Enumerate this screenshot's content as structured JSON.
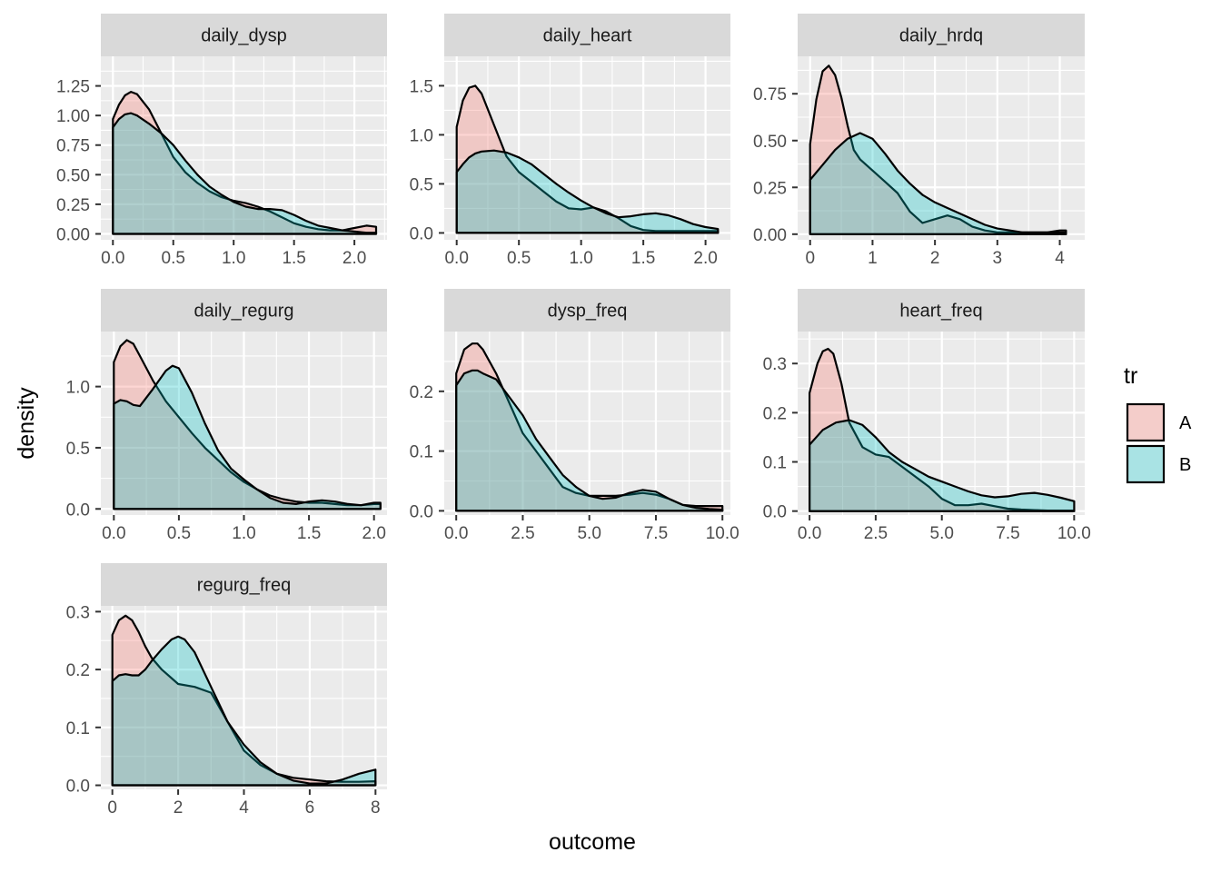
{
  "chart_data": {
    "type": "area",
    "xlabel": "outcome",
    "ylabel": "density",
    "legend": {
      "title": "tr",
      "position": "right",
      "entries": [
        {
          "name": "A",
          "color": "#F8766D"
        },
        {
          "name": "B",
          "color": "#00BFC4"
        }
      ]
    },
    "fill_alpha": 0.3,
    "grid": true,
    "panels": [
      {
        "title": "daily_dysp",
        "xlim": [
          -0.1,
          2.27
        ],
        "ylim": [
          -0.05,
          1.5
        ],
        "xticks": [
          0,
          0.5,
          1,
          1.5,
          2
        ],
        "xtick_labels": [
          "0.0",
          "0.5",
          "1.0",
          "1.5",
          "2.0"
        ],
        "yticks": [
          0,
          0.25,
          0.5,
          0.75,
          1,
          1.25
        ],
        "ytick_labels": [
          "0.00",
          "0.25",
          "0.50",
          "0.75",
          "1.00",
          "1.25"
        ],
        "series": [
          {
            "name": "A",
            "x": [
              0,
              0.05,
              0.1,
              0.15,
              0.2,
              0.3,
              0.4,
              0.5,
              0.6,
              0.7,
              0.8,
              0.9,
              1.0,
              1.1,
              1.2,
              1.3,
              1.4,
              1.5,
              1.6,
              1.7,
              1.8,
              1.9,
              2.0,
              2.1,
              2.18
            ],
            "y": [
              0.97,
              1.09,
              1.17,
              1.2,
              1.18,
              1.05,
              0.85,
              0.65,
              0.52,
              0.43,
              0.36,
              0.31,
              0.28,
              0.26,
              0.23,
              0.19,
              0.14,
              0.09,
              0.06,
              0.04,
              0.03,
              0.03,
              0.05,
              0.07,
              0.06
            ]
          },
          {
            "name": "B",
            "x": [
              0,
              0.05,
              0.1,
              0.15,
              0.2,
              0.3,
              0.4,
              0.5,
              0.6,
              0.7,
              0.8,
              0.9,
              1.0,
              1.1,
              1.2,
              1.3,
              1.4,
              1.5,
              1.6,
              1.7,
              1.8,
              1.9,
              2.0,
              2.1,
              2.18
            ],
            "y": [
              0.9,
              0.97,
              1.01,
              1.02,
              1.0,
              0.93,
              0.85,
              0.75,
              0.62,
              0.5,
              0.4,
              0.33,
              0.27,
              0.23,
              0.21,
              0.21,
              0.2,
              0.16,
              0.11,
              0.07,
              0.05,
              0.03,
              0.02,
              0.01,
              0.01
            ]
          }
        ]
      },
      {
        "title": "daily_heart",
        "xlim": [
          -0.1,
          2.2
        ],
        "ylim": [
          -0.07,
          1.8
        ],
        "xticks": [
          0,
          0.5,
          1,
          1.5,
          2
        ],
        "xtick_labels": [
          "0.0",
          "0.5",
          "1.0",
          "1.5",
          "2.0"
        ],
        "yticks": [
          0,
          0.5,
          1,
          1.5
        ],
        "ytick_labels": [
          "0.0",
          "0.5",
          "1.0",
          "1.5"
        ],
        "series": [
          {
            "name": "A",
            "x": [
              0,
              0.05,
              0.1,
              0.15,
              0.2,
              0.3,
              0.4,
              0.5,
              0.6,
              0.7,
              0.8,
              0.9,
              1.0,
              1.1,
              1.2,
              1.3,
              1.4,
              1.5,
              1.6,
              1.7,
              1.8,
              1.9,
              2.0,
              2.1
            ],
            "y": [
              1.08,
              1.35,
              1.48,
              1.5,
              1.42,
              1.1,
              0.78,
              0.62,
              0.52,
              0.42,
              0.32,
              0.25,
              0.24,
              0.26,
              0.22,
              0.15,
              0.07,
              0.03,
              0.02,
              0.02,
              0.02,
              0.02,
              0.02,
              0.02
            ]
          },
          {
            "name": "B",
            "x": [
              0,
              0.05,
              0.1,
              0.15,
              0.2,
              0.3,
              0.4,
              0.5,
              0.6,
              0.7,
              0.8,
              0.9,
              1.0,
              1.1,
              1.2,
              1.3,
              1.4,
              1.5,
              1.6,
              1.7,
              1.8,
              1.9,
              2.0,
              2.1
            ],
            "y": [
              0.62,
              0.7,
              0.77,
              0.81,
              0.83,
              0.84,
              0.82,
              0.77,
              0.7,
              0.6,
              0.5,
              0.41,
              0.33,
              0.26,
              0.2,
              0.16,
              0.17,
              0.19,
              0.2,
              0.18,
              0.14,
              0.09,
              0.06,
              0.04
            ]
          }
        ]
      },
      {
        "title": "daily_hrdq",
        "xlim": [
          -0.2,
          4.4
        ],
        "ylim": [
          -0.03,
          0.95
        ],
        "xticks": [
          0,
          1,
          2,
          3,
          4
        ],
        "xtick_labels": [
          "0",
          "1",
          "2",
          "3",
          "4"
        ],
        "yticks": [
          0,
          0.25,
          0.5,
          0.75
        ],
        "ytick_labels": [
          "0.00",
          "0.25",
          "0.50",
          "0.75"
        ],
        "series": [
          {
            "name": "A",
            "x": [
              0,
              0.1,
              0.2,
              0.3,
              0.4,
              0.5,
              0.6,
              0.7,
              0.8,
              1.0,
              1.2,
              1.4,
              1.6,
              1.8,
              2.0,
              2.2,
              2.4,
              2.6,
              2.8,
              3.0,
              3.2,
              3.4,
              3.6,
              3.8,
              4.0,
              4.1
            ],
            "y": [
              0.48,
              0.72,
              0.87,
              0.9,
              0.85,
              0.73,
              0.58,
              0.45,
              0.4,
              0.34,
              0.28,
              0.22,
              0.12,
              0.06,
              0.08,
              0.1,
              0.08,
              0.04,
              0.02,
              0.01,
              0.01,
              0.01,
              0.01,
              0.01,
              0.02,
              0.02
            ]
          },
          {
            "name": "B",
            "x": [
              0,
              0.2,
              0.4,
              0.6,
              0.8,
              1.0,
              1.2,
              1.4,
              1.6,
              1.8,
              2.0,
              2.2,
              2.4,
              2.6,
              2.8,
              3.0,
              3.2,
              3.4,
              3.6,
              3.8,
              4.0,
              4.1
            ],
            "y": [
              0.29,
              0.37,
              0.45,
              0.51,
              0.54,
              0.51,
              0.43,
              0.34,
              0.27,
              0.21,
              0.17,
              0.14,
              0.11,
              0.08,
              0.05,
              0.03,
              0.02,
              0.01,
              0.01,
              0.01,
              0.01,
              0.01
            ]
          }
        ]
      },
      {
        "title": "daily_regurg",
        "xlim": [
          -0.1,
          2.1
        ],
        "ylim": [
          -0.05,
          1.45
        ],
        "xticks": [
          0,
          0.5,
          1,
          1.5,
          2
        ],
        "xtick_labels": [
          "0.0",
          "0.5",
          "1.0",
          "1.5",
          "2.0"
        ],
        "yticks": [
          0,
          0.5,
          1
        ],
        "ytick_labels": [
          "0.0",
          "0.5",
          "1.0"
        ],
        "series": [
          {
            "name": "A",
            "x": [
              0,
              0.05,
              0.1,
              0.15,
              0.2,
              0.3,
              0.4,
              0.5,
              0.6,
              0.7,
              0.8,
              0.9,
              1.0,
              1.1,
              1.2,
              1.3,
              1.4,
              1.5,
              1.6,
              1.7,
              1.8,
              1.9,
              2.0,
              2.05
            ],
            "y": [
              1.2,
              1.33,
              1.38,
              1.35,
              1.25,
              1.05,
              0.88,
              0.75,
              0.62,
              0.5,
              0.4,
              0.3,
              0.22,
              0.16,
              0.11,
              0.08,
              0.06,
              0.05,
              0.05,
              0.04,
              0.03,
              0.03,
              0.04,
              0.04
            ]
          },
          {
            "name": "B",
            "x": [
              0,
              0.05,
              0.1,
              0.15,
              0.2,
              0.3,
              0.4,
              0.45,
              0.5,
              0.6,
              0.7,
              0.8,
              0.9,
              1.0,
              1.1,
              1.2,
              1.3,
              1.4,
              1.5,
              1.6,
              1.7,
              1.8,
              1.9,
              2.0,
              2.05
            ],
            "y": [
              0.86,
              0.89,
              0.88,
              0.85,
              0.84,
              0.98,
              1.13,
              1.17,
              1.15,
              0.95,
              0.7,
              0.48,
              0.33,
              0.24,
              0.16,
              0.09,
              0.05,
              0.04,
              0.06,
              0.07,
              0.06,
              0.04,
              0.03,
              0.05,
              0.05
            ]
          }
        ]
      },
      {
        "title": "dysp_freq",
        "xlim": [
          -0.45,
          10.3
        ],
        "ylim": [
          -0.007,
          0.3
        ],
        "xticks": [
          0,
          2.5,
          5,
          7.5,
          10
        ],
        "xtick_labels": [
          "0.0",
          "2.5",
          "5.0",
          "7.5",
          "10.0"
        ],
        "yticks": [
          0,
          0.1,
          0.2
        ],
        "ytick_labels": [
          "0.0",
          "0.1",
          "0.2"
        ],
        "series": [
          {
            "name": "A",
            "x": [
              0,
              0.3,
              0.6,
              0.8,
              1.0,
              1.5,
              2.0,
              2.5,
              3.0,
              3.5,
              4.0,
              4.5,
              5.0,
              5.5,
              6.0,
              6.5,
              7.0,
              7.5,
              8.0,
              8.5,
              9.0,
              9.5,
              10.0
            ],
            "y": [
              0.23,
              0.27,
              0.28,
              0.28,
              0.27,
              0.23,
              0.18,
              0.13,
              0.1,
              0.07,
              0.04,
              0.03,
              0.025,
              0.025,
              0.025,
              0.027,
              0.03,
              0.027,
              0.02,
              0.01,
              0.008,
              0.008,
              0.008
            ]
          },
          {
            "name": "B",
            "x": [
              0,
              0.3,
              0.6,
              0.8,
              1.0,
              1.5,
              2.0,
              2.5,
              3.0,
              3.5,
              4.0,
              4.5,
              5.0,
              5.5,
              6.0,
              6.5,
              7.0,
              7.5,
              8.0,
              8.5,
              9.0,
              9.5,
              10.0
            ],
            "y": [
              0.21,
              0.23,
              0.235,
              0.235,
              0.23,
              0.22,
              0.19,
              0.16,
              0.12,
              0.09,
              0.06,
              0.04,
              0.025,
              0.02,
              0.022,
              0.03,
              0.035,
              0.032,
              0.02,
              0.01,
              0.005,
              0.003,
              0.002
            ]
          }
        ]
      },
      {
        "title": "heart_freq",
        "xlim": [
          -0.45,
          10.4
        ],
        "ylim": [
          -0.008,
          0.365
        ],
        "xticks": [
          0,
          2.5,
          5,
          7.5,
          10
        ],
        "xtick_labels": [
          "0.0",
          "2.5",
          "5.0",
          "7.5",
          "10.0"
        ],
        "yticks": [
          0,
          0.1,
          0.2,
          0.3
        ],
        "ytick_labels": [
          "0.0",
          "0.1",
          "0.2",
          "0.3"
        ],
        "series": [
          {
            "name": "A",
            "x": [
              0,
              0.3,
              0.5,
              0.7,
              0.9,
              1.2,
              1.5,
              2.0,
              2.5,
              3.0,
              3.5,
              4.0,
              4.5,
              5.0,
              5.5,
              6.0,
              6.5,
              7.0,
              7.5,
              8.0,
              8.5,
              9.0,
              9.5,
              10.0
            ],
            "y": [
              0.24,
              0.3,
              0.325,
              0.33,
              0.32,
              0.26,
              0.18,
              0.13,
              0.115,
              0.11,
              0.09,
              0.07,
              0.05,
              0.025,
              0.012,
              0.012,
              0.015,
              0.01,
              0.005,
              0.003,
              0.002,
              0.001,
              0.001,
              0.001
            ]
          },
          {
            "name": "B",
            "x": [
              0,
              0.5,
              1.0,
              1.5,
              2.0,
              2.5,
              3.0,
              3.5,
              4.0,
              4.5,
              5.0,
              5.5,
              6.0,
              6.5,
              7.0,
              7.5,
              8.0,
              8.5,
              9.0,
              9.5,
              10.0
            ],
            "y": [
              0.135,
              0.165,
              0.18,
              0.185,
              0.175,
              0.15,
              0.12,
              0.1,
              0.085,
              0.07,
              0.06,
              0.05,
              0.04,
              0.032,
              0.028,
              0.03,
              0.035,
              0.037,
              0.033,
              0.027,
              0.02
            ]
          }
        ]
      },
      {
        "title": "regurg_freq",
        "xlim": [
          -0.35,
          8.35
        ],
        "ylim": [
          -0.007,
          0.31
        ],
        "xticks": [
          0,
          2,
          4,
          6,
          8
        ],
        "xtick_labels": [
          "0",
          "2",
          "4",
          "6",
          "8"
        ],
        "yticks": [
          0,
          0.1,
          0.2,
          0.3
        ],
        "ytick_labels": [
          "0.0",
          "0.1",
          "0.2",
          "0.3"
        ],
        "series": [
          {
            "name": "A",
            "x": [
              0,
              0.2,
              0.4,
              0.6,
              0.8,
              1.0,
              1.2,
              1.5,
              2.0,
              2.5,
              3.0,
              3.5,
              4.0,
              4.5,
              5.0,
              5.5,
              6.0,
              6.5,
              7.0,
              7.5,
              8.0
            ],
            "y": [
              0.26,
              0.285,
              0.293,
              0.285,
              0.265,
              0.24,
              0.22,
              0.2,
              0.175,
              0.17,
              0.16,
              0.11,
              0.06,
              0.035,
              0.02,
              0.013,
              0.01,
              0.007,
              0.006,
              0.006,
              0.007
            ]
          },
          {
            "name": "B",
            "x": [
              0,
              0.2,
              0.4,
              0.6,
              0.8,
              1.0,
              1.2,
              1.5,
              1.8,
              2.0,
              2.2,
              2.5,
              3.0,
              3.5,
              4.0,
              4.5,
              5.0,
              5.5,
              6.0,
              6.5,
              7.0,
              7.5,
              8.0
            ],
            "y": [
              0.18,
              0.19,
              0.192,
              0.19,
              0.19,
              0.2,
              0.215,
              0.235,
              0.252,
              0.257,
              0.252,
              0.23,
              0.17,
              0.11,
              0.07,
              0.04,
              0.02,
              0.008,
              0.003,
              0.003,
              0.01,
              0.02,
              0.027
            ]
          }
        ]
      }
    ]
  }
}
